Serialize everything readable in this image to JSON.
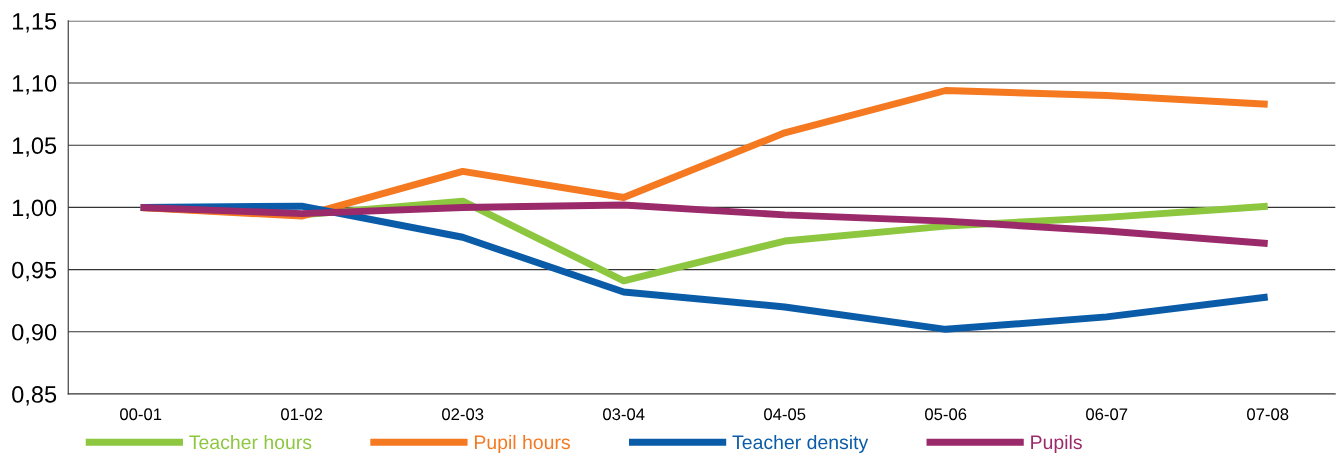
{
  "chart_data": {
    "type": "line",
    "categories": [
      "00-01",
      "01-02",
      "02-03",
      "03-04",
      "04-05",
      "05-06",
      "06-07",
      "07-08"
    ],
    "series": [
      {
        "name": "Teacher hours",
        "color": "#8dc63f",
        "values": [
          1.0,
          0.994,
          1.005,
          0.941,
          0.973,
          0.985,
          0.992,
          1.001
        ]
      },
      {
        "name": "Pupil hours",
        "color": "#f47920",
        "values": [
          1.0,
          0.993,
          1.029,
          1.008,
          1.06,
          1.094,
          1.09,
          1.083
        ]
      },
      {
        "name": "Teacher density",
        "color": "#0a5ca8",
        "values": [
          1.0,
          1.001,
          0.976,
          0.932,
          0.92,
          0.902,
          0.912,
          0.928
        ]
      },
      {
        "name": "Pupils",
        "color": "#9b2a6a",
        "values": [
          1.0,
          0.995,
          1.0,
          1.002,
          0.994,
          0.989,
          0.981,
          0.971
        ]
      }
    ],
    "ylim": [
      0.85,
      1.15
    ],
    "yticks": [
      {
        "value": 0.85,
        "label": "0,85"
      },
      {
        "value": 0.9,
        "label": "0,90"
      },
      {
        "value": 0.95,
        "label": "0,95"
      },
      {
        "value": 1.0,
        "label": "1,00"
      },
      {
        "value": 1.05,
        "label": "1,05"
      },
      {
        "value": 1.1,
        "label": "1,10"
      },
      {
        "value": 1.15,
        "label": "1,15"
      }
    ],
    "grid": "y",
    "legend": "bottom",
    "marker": "none",
    "line_style": "solid"
  }
}
